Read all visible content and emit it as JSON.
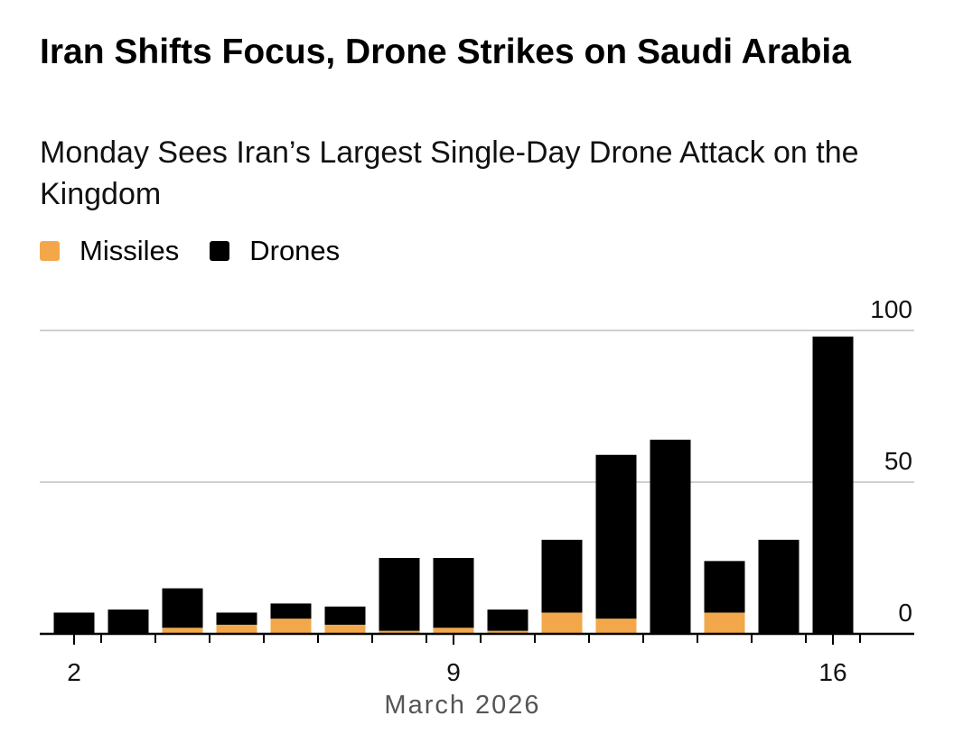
{
  "header": {
    "title": "Iran Shifts Focus, Drone Strikes on Saudi Arabia",
    "subtitle": "Monday Sees Iran’s Largest Single-Day Drone Attack on the Kingdom"
  },
  "legend": {
    "missiles_label": "Missiles",
    "drones_label": "Drones"
  },
  "colors": {
    "missiles": "#f2a84a",
    "drones": "#000000",
    "grid": "#cfcfcf"
  },
  "chart_data": {
    "type": "bar",
    "stacked": true,
    "title": "Iran Shifts Focus, Drone Strikes on Saudi Arabia",
    "subtitle": "Monday Sees Iran’s Largest Single-Day Drone Attack on the Kingdom",
    "xlabel": "March 2026",
    "ylabel": "",
    "ylim": [
      0,
      100
    ],
    "yticks": [
      0,
      50,
      100
    ],
    "y_axis_side": "right",
    "categories": [
      2,
      3,
      4,
      5,
      6,
      7,
      8,
      9,
      10,
      11,
      12,
      13,
      14,
      15,
      16
    ],
    "xtick_labels": {
      "2": "2",
      "9": "9",
      "16": "16"
    },
    "series": [
      {
        "name": "Missiles",
        "values": [
          0,
          0,
          2,
          3,
          5,
          3,
          1,
          2,
          1,
          7,
          5,
          0,
          7,
          0,
          0
        ]
      },
      {
        "name": "Drones",
        "values": [
          7,
          8,
          13,
          4,
          5,
          6,
          24,
          23,
          7,
          24,
          54,
          64,
          17,
          31,
          98
        ]
      }
    ],
    "grid": true,
    "legend_position": "top-left"
  }
}
